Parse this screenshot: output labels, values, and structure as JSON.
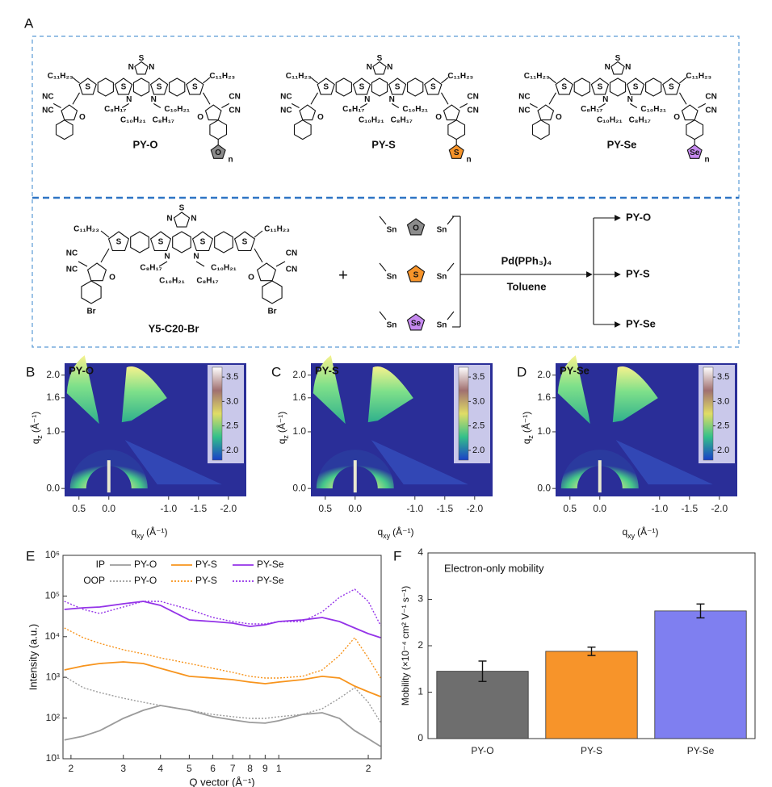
{
  "panel_letters": [
    "A",
    "B",
    "C",
    "D",
    "E",
    "F"
  ],
  "scheme": {
    "polymers": [
      {
        "name": "PY-O",
        "heteroatom": "O",
        "color": "#8c8c8c"
      },
      {
        "name": "PY-S",
        "heteroatom": "S",
        "color": "#f7942a"
      },
      {
        "name": "PY-Se",
        "heteroatom": "Se",
        "color": "#c68af0"
      }
    ],
    "atoms": {
      "s": "S",
      "n": "N",
      "o": "O",
      "nc": "NC",
      "cn": "CN",
      "c11": "C₁₁H₂₃",
      "c8": "C₈H₁₇",
      "c10": "C₁₀H₂₁",
      "br": "Br",
      "sn": "Sn",
      "rep": "n"
    },
    "monomer": "Y5-C20-Br",
    "plus": "+",
    "catalyst": "Pd(PPh₃)₄",
    "solvent": "Toluene",
    "products": [
      "PY-O",
      "PY-S",
      "PY-Se"
    ]
  },
  "giwaxs": {
    "panels": [
      {
        "title": "PY-O"
      },
      {
        "title": "PY-S"
      },
      {
        "title": "PY-Se"
      }
    ],
    "xlim": [
      0.74,
      -2.3
    ],
    "xticks": [
      0.5,
      {
        "value": 0,
        "label": "0.0"
      },
      {
        "value": -1,
        "label": "-1.0"
      },
      -1.5,
      {
        "value": -2,
        "label": "-2.0"
      }
    ],
    "ylim": [
      -0.14,
      2.21
    ],
    "yticks": [
      {
        "value": 0,
        "label": "0.0"
      },
      {
        "value": 1,
        "label": "1.0"
      },
      1.6,
      {
        "value": 2,
        "label": "2.0"
      }
    ],
    "colorbar": {
      "lim": [
        1.8,
        3.7
      ],
      "ticks": [
        {
          "value": 2,
          "label": "2.0"
        },
        2.5,
        {
          "value": 3,
          "label": "3.0"
        },
        3.5
      ]
    },
    "xlabel": {
      "base": "q",
      "sub": "xy",
      "unit": "(Å⁻¹)"
    },
    "ylabel": {
      "base": "q",
      "sub": "z",
      "unit": "(Å⁻¹)"
    }
  },
  "chart_data": [
    {
      "type": "line",
      "log_x": true,
      "log_y": true,
      "xlabel": "Q vector (Å⁻¹)",
      "ylabel": "Intensity (a.u.)",
      "x": [
        0.19,
        0.22,
        0.25,
        0.3,
        0.35,
        0.4,
        0.5,
        0.6,
        0.7,
        0.8,
        0.9,
        1.0,
        1.2,
        1.4,
        1.6,
        1.8,
        2.0,
        2.2
      ],
      "legend_rows": [
        {
          "label": "IP",
          "dash": "solid"
        },
        {
          "label": "OOP",
          "dash": "dotted"
        }
      ],
      "series": [
        {
          "name": "PY-O",
          "dash": "solid",
          "color": "#9b9b9b",
          "values": [
            29,
            36,
            49,
            98,
            155,
            204,
            155,
            108,
            90,
            78,
            75,
            86,
            123,
            135,
            98,
            49,
            31,
            20
          ]
        },
        {
          "name": "PY-S",
          "dash": "solid",
          "color": "#f7941d",
          "values": [
            1520,
            1910,
            2190,
            2400,
            2190,
            1670,
            1060,
            964,
            879,
            767,
            700,
            767,
            879,
            1060,
            964,
            611,
            443,
            337
          ]
        },
        {
          "name": "PY-Se",
          "dash": "solid",
          "color": "#9433e8",
          "values": [
            46900,
            51300,
            53700,
            64500,
            74000,
            58900,
            25900,
            23600,
            21500,
            17900,
            19700,
            23600,
            25900,
            29700,
            23600,
            16400,
            11900,
            9470
          ]
        },
        {
          "name": "PY-O",
          "dash": "dotted",
          "color": "#9b9b9b",
          "values": [
            1060,
            557,
            424,
            308,
            245,
            204,
            155,
            123,
            108,
            98,
            98,
            108,
            123,
            170,
            308,
            557,
            245,
            78
          ]
        },
        {
          "name": "PY-S",
          "dash": "dotted",
          "color": "#f7941d",
          "values": [
            16400,
            9470,
            6880,
            4770,
            3800,
            3020,
            2190,
            1670,
            1330,
            1060,
            964,
            964,
            1060,
            1520,
            3470,
            9470,
            3020,
            964
          ]
        },
        {
          "name": "PY-Se",
          "dash": "dotted",
          "color": "#9433e8",
          "values": [
            74000,
            46900,
            37300,
            53700,
            74000,
            74000,
            46900,
            29700,
            23600,
            20600,
            20600,
            23600,
            23600,
            40800,
            92900,
            147000,
            74000,
            18800
          ]
        }
      ],
      "xlim": [
        0.188,
        2.21
      ],
      "xticks": [
        {
          "value": 0.2,
          "label": "2"
        },
        {
          "value": 0.3,
          "label": "3"
        },
        {
          "value": 0.4,
          "label": "4"
        },
        {
          "value": 0.5,
          "label": "5"
        },
        {
          "value": 0.6,
          "label": "6"
        },
        {
          "value": 0.7,
          "label": "7"
        },
        {
          "value": 0.8,
          "label": "8"
        },
        {
          "value": 0.9,
          "label": "9"
        },
        1,
        2
      ],
      "ylim": [
        10,
        1000000
      ],
      "yticks": [
        {
          "value": 10,
          "label": "10¹"
        },
        {
          "value": 100,
          "label": "10²"
        },
        {
          "value": 1000,
          "label": "10³"
        },
        {
          "value": 10000,
          "label": "10⁴"
        },
        {
          "value": 100000,
          "label": "10⁵"
        },
        {
          "value": 1000000,
          "label": "10⁶"
        }
      ]
    },
    {
      "type": "bar",
      "annotation": "Electron-only mobility",
      "ylabel": "Mobility (×10⁻⁴ cm² V⁻¹ s⁻¹)",
      "categories": [
        "PY-O",
        "PY-S",
        "PY-Se"
      ],
      "values": [
        1.45,
        1.88,
        2.75
      ],
      "errors": [
        0.22,
        0.09,
        0.15
      ],
      "colors": [
        "#6e6e6e",
        "#f7942a",
        "#7f7ff0"
      ],
      "ylim": [
        0,
        4
      ],
      "yticks": [
        0,
        1,
        2,
        3,
        4
      ]
    }
  ]
}
